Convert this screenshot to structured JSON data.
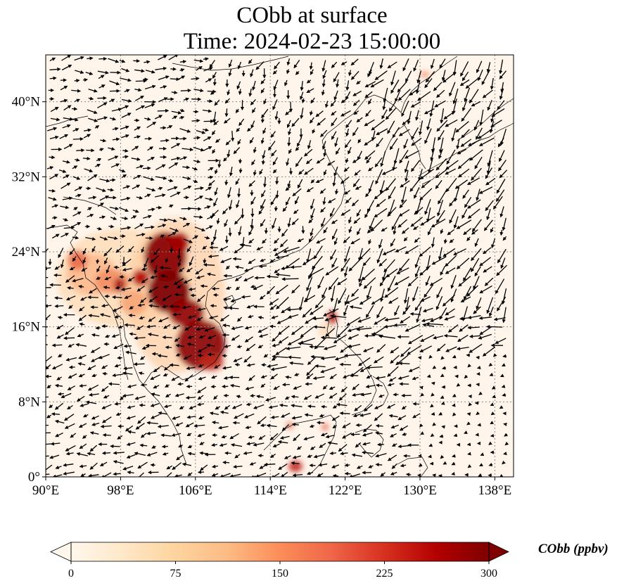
{
  "title": {
    "line1": "CObb at surface",
    "line2": "Time: 2024-02-23 15:00:00"
  },
  "map": {
    "projection": "PlateCarree",
    "lon_range": [
      90,
      140
    ],
    "lat_range": [
      0,
      45
    ],
    "lon_ticks": [
      90,
      98,
      106,
      114,
      122,
      130,
      138
    ],
    "lon_tick_labels": [
      "90°E",
      "98°E",
      "106°E",
      "114°E",
      "122°E",
      "130°E",
      "138°E"
    ],
    "lat_ticks": [
      0,
      8,
      16,
      24,
      32,
      40
    ],
    "lat_tick_labels": [
      "0°",
      "8°N",
      "16°N",
      "24°N",
      "32°N",
      "40°N"
    ],
    "gridlines": "dotted",
    "background_color": "#fff5eb",
    "arrow_color": "#000000",
    "coastline_color": "#000000"
  },
  "colorbar": {
    "label": "CObb (ppbv)",
    "ticks": [
      0,
      75,
      150,
      225,
      300
    ],
    "tick_labels": [
      "0",
      "75",
      "150",
      "225",
      "300"
    ],
    "range": [
      0,
      300
    ],
    "extend": "both",
    "colormap": "OrRd",
    "colors": [
      "#fff7ec",
      "#fee8c8",
      "#fdd49e",
      "#fdbb84",
      "#fc8d59",
      "#ef6548",
      "#d7301f",
      "#b30000",
      "#7f0000"
    ]
  }
}
